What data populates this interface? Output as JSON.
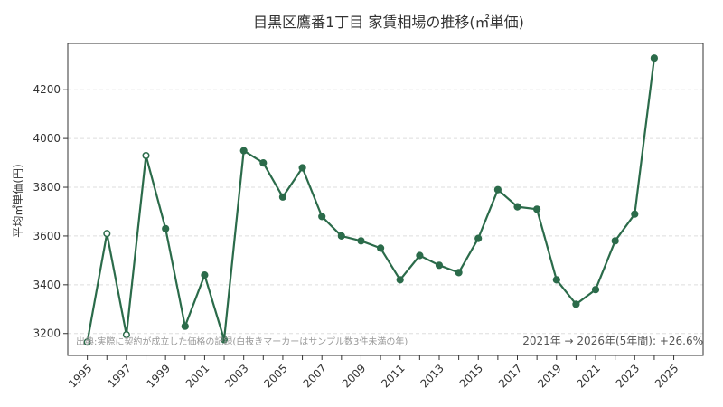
{
  "chart_data": {
    "type": "line",
    "title": "目黒区鷹番1丁目 家賃相場の推移(㎡単価)",
    "ylabel": "平均㎡単価(円)",
    "xlabel": "",
    "ylim": [
      3110,
      4390
    ],
    "xlim": [
      1994,
      2026.5
    ],
    "yticks": [
      3200,
      3400,
      3600,
      3800,
      4000,
      4200
    ],
    "xticks": [
      1995,
      1997,
      1999,
      2001,
      2003,
      2005,
      2007,
      2009,
      2011,
      2013,
      2015,
      2017,
      2019,
      2021,
      2023,
      2025
    ],
    "grid": "horizontal",
    "line_color": "#2b6b4a",
    "series": [
      {
        "name": "",
        "points": [
          {
            "x": 1995,
            "y": 3165,
            "sparse": true
          },
          {
            "x": 1996,
            "y": 3610,
            "sparse": true
          },
          {
            "x": 1997,
            "y": 3195,
            "sparse": true
          },
          {
            "x": 1998,
            "y": 3930,
            "sparse": true
          },
          {
            "x": 1999,
            "y": 3630,
            "sparse": false
          },
          {
            "x": 2000,
            "y": 3230,
            "sparse": false
          },
          {
            "x": 2001,
            "y": 3440,
            "sparse": false
          },
          {
            "x": 2002,
            "y": 3175,
            "sparse": false
          },
          {
            "x": 2003,
            "y": 3950,
            "sparse": false
          },
          {
            "x": 2004,
            "y": 3900,
            "sparse": false
          },
          {
            "x": 2005,
            "y": 3760,
            "sparse": false
          },
          {
            "x": 2006,
            "y": 3880,
            "sparse": false
          },
          {
            "x": 2007,
            "y": 3680,
            "sparse": false
          },
          {
            "x": 2008,
            "y": 3600,
            "sparse": false
          },
          {
            "x": 2009,
            "y": 3580,
            "sparse": false
          },
          {
            "x": 2010,
            "y": 3550,
            "sparse": false
          },
          {
            "x": 2011,
            "y": 3420,
            "sparse": false
          },
          {
            "x": 2012,
            "y": 3520,
            "sparse": false
          },
          {
            "x": 2013,
            "y": 3480,
            "sparse": false
          },
          {
            "x": 2014,
            "y": 3450,
            "sparse": false
          },
          {
            "x": 2015,
            "y": 3590,
            "sparse": false
          },
          {
            "x": 2016,
            "y": 3790,
            "sparse": false
          },
          {
            "x": 2017,
            "y": 3720,
            "sparse": false
          },
          {
            "x": 2018,
            "y": 3710,
            "sparse": false
          },
          {
            "x": 2019,
            "y": 3420,
            "sparse": false
          },
          {
            "x": 2020,
            "y": 3320,
            "sparse": false
          },
          {
            "x": 2021,
            "y": 3380,
            "sparse": false
          },
          {
            "x": 2022,
            "y": 3580,
            "sparse": false
          },
          {
            "x": 2023,
            "y": 3690,
            "sparse": false
          },
          {
            "x": 2024,
            "y": 4330,
            "sparse": false
          }
        ]
      }
    ],
    "footnote": "出典:実際に契約が成立した価格の記録(白抜きマーカーはサンプル数3件未満の年)",
    "summary": "2021年 → 2026年(5年間): +26.6%"
  }
}
